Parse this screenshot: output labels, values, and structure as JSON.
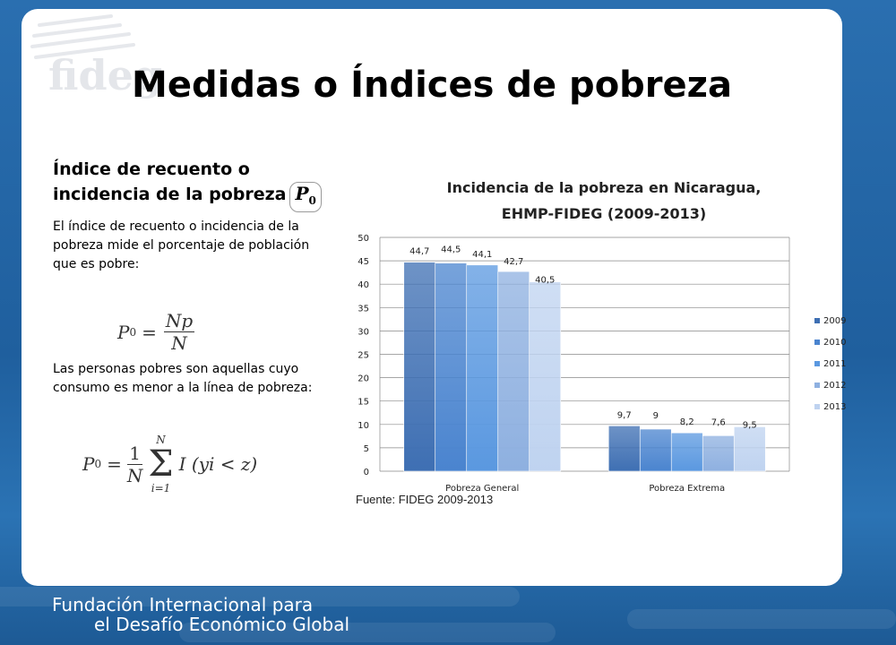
{
  "slide": {
    "title": "Medidas o Índices de pobreza",
    "logo_text": "fideg"
  },
  "left": {
    "heading": "Índice de recuento o incidencia de la pobreza",
    "paragraph1": "El índice de recuento o incidencia de la pobreza mide el porcentaje de población que es pobre:",
    "paragraph2": "Las personas pobres son aquellas cuyo consumo es menor a la línea de pobreza:",
    "formula_symbol": "P",
    "formula_sub": "0",
    "formula1_num": "Np",
    "formula1_den": "N",
    "formula2_text": "I (yi < z)",
    "formula2_upper": "N",
    "formula2_lower": "i=1"
  },
  "chart_data": {
    "type": "bar",
    "title": "Incidencia de la pobreza en Nicaragua, EHMP-FIDEG (2009-2013)",
    "title_lines": [
      "Incidencia de la pobreza en Nicaragua,",
      "EHMP-FIDEG (2009-2013)"
    ],
    "categories": [
      "Pobreza General",
      "Pobreza Extrema"
    ],
    "series": [
      {
        "name": "2009",
        "values": [
          44.7,
          9.7
        ],
        "labels": [
          "44,7",
          "9,7"
        ],
        "color": "#3e6fb3"
      },
      {
        "name": "2010",
        "values": [
          44.5,
          9.0
        ],
        "labels": [
          "44,5",
          "9"
        ],
        "color": "#4a84cf"
      },
      {
        "name": "2011",
        "values": [
          44.1,
          8.2
        ],
        "labels": [
          "44,1",
          "8,2"
        ],
        "color": "#5a98e0"
      },
      {
        "name": "2012",
        "values": [
          42.7,
          7.6
        ],
        "labels": [
          "42,7",
          "7,6"
        ],
        "color": "#8eb0e0"
      },
      {
        "name": "2013",
        "values": [
          40.5,
          9.5
        ],
        "labels": [
          "40,5",
          "9,5"
        ],
        "color": "#bfd3f0"
      }
    ],
    "yticks": [
      "0",
      "5",
      "10",
      "15",
      "20",
      "25",
      "30",
      "35",
      "40",
      "45",
      "50"
    ],
    "ylim": [
      0,
      50
    ],
    "grid": true,
    "legend": "right"
  },
  "source": "Fuente: FIDEG 2009-2013",
  "footer": {
    "line1": "Fundación Internacional para",
    "line2": "el Desafío Económico Global"
  }
}
